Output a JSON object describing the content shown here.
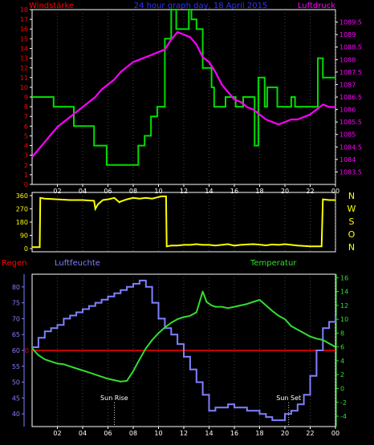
{
  "header": {
    "left_label": "Windstärke",
    "title": "24 hour graph day, 18 April 2015",
    "right_label": "Luftdruck"
  },
  "colors": {
    "wind_speed": "#00dd00",
    "pressure": "#ff00ff",
    "direction": "#ffff00",
    "humidity": "#8080ff",
    "temperature": "#33dd33",
    "rain": "#ff0000",
    "frame": "#ffffff",
    "grid": "#888888"
  },
  "chart_data": [
    {
      "type": "line",
      "name": "wind-pressure",
      "title": "",
      "y_left_label": "Windstärke",
      "y_right_label": "Luftdruck",
      "x_ticks": [
        "02",
        "04",
        "06",
        "08",
        "10",
        "12",
        "14",
        "16",
        "18",
        "20",
        "22",
        "00"
      ],
      "x_range": [
        0,
        24
      ],
      "y_left_range": [
        0,
        18
      ],
      "y_left_ticks": [
        0,
        1,
        2,
        3,
        4,
        5,
        6,
        7,
        8,
        9,
        10,
        11,
        12,
        13,
        14,
        15,
        16,
        17,
        18
      ],
      "y_right_range": [
        1083,
        1090
      ],
      "y_right_ticks": [
        1083.5,
        1084,
        1084.5,
        1085,
        1085.5,
        1086,
        1086.5,
        1087,
        1087.5,
        1088,
        1088.5,
        1089,
        1089.5
      ],
      "series": [
        {
          "name": "Windstärke",
          "axis": "left",
          "step": true,
          "x": [
            0,
            1.7,
            1.7,
            3.3,
            3.3,
            4.9,
            4.9,
            5.9,
            5.9,
            8.4,
            8.4,
            8.9,
            8.9,
            9.4,
            9.4,
            9.9,
            9.9,
            10.5,
            10.5,
            11.0,
            11.0,
            11.4,
            11.4,
            12.4,
            12.4,
            12.6,
            12.6,
            13.0,
            13.0,
            13.5,
            13.5,
            14.2,
            14.2,
            14.4,
            14.4,
            15.3,
            15.3,
            16.1,
            16.1,
            16.7,
            16.7,
            17.6,
            17.6,
            17.9,
            17.9,
            18.4,
            18.4,
            18.6,
            18.6,
            19.4,
            19.4,
            20.5,
            20.5,
            20.8,
            20.8,
            22.6,
            22.6,
            23.0,
            23.0,
            23.6,
            23.6,
            24
          ],
          "y": [
            9,
            9,
            8,
            8,
            6,
            6,
            4,
            4,
            2,
            2,
            4,
            4,
            5,
            5,
            7,
            7,
            8,
            8,
            15,
            15,
            18,
            18,
            16,
            16,
            18,
            18,
            17,
            17,
            16,
            16,
            12,
            12,
            10,
            10,
            8,
            8,
            9,
            9,
            8,
            8,
            9,
            9,
            4,
            4,
            11,
            11,
            8,
            8,
            10,
            10,
            8,
            8,
            9,
            9,
            8,
            8,
            13,
            13,
            11,
            11,
            11,
            11
          ]
        },
        {
          "name": "Luftdruck",
          "axis": "right",
          "x": [
            0,
            0.5,
            1,
            1.5,
            2,
            2.5,
            3,
            3.5,
            4,
            4.5,
            5,
            5.5,
            6,
            6.5,
            7,
            7.5,
            8,
            8.5,
            9,
            9.5,
            10,
            10.5,
            11,
            11.5,
            12,
            12.5,
            13,
            13.5,
            14,
            14.5,
            15,
            15.5,
            16,
            16.5,
            17,
            17.5,
            18,
            18.5,
            19,
            19.5,
            20,
            20.5,
            21,
            21.5,
            22,
            22.5,
            23,
            23.5,
            24
          ],
          "y": [
            1084.1,
            1084.4,
            1084.7,
            1085.0,
            1085.3,
            1085.5,
            1085.7,
            1085.9,
            1086.1,
            1086.3,
            1086.5,
            1086.8,
            1087.0,
            1087.2,
            1087.5,
            1087.7,
            1087.9,
            1088.0,
            1088.1,
            1088.2,
            1088.3,
            1088.4,
            1088.8,
            1089.1,
            1089.0,
            1088.9,
            1088.6,
            1088.1,
            1087.9,
            1087.5,
            1087.0,
            1086.7,
            1086.4,
            1086.3,
            1086.1,
            1086.0,
            1085.8,
            1085.6,
            1085.5,
            1085.4,
            1085.5,
            1085.6,
            1085.6,
            1085.7,
            1085.8,
            1086.0,
            1086.2,
            1086.1,
            1086.1
          ]
        }
      ]
    },
    {
      "type": "line",
      "name": "wind-direction",
      "title": "",
      "y_range": [
        0,
        360
      ],
      "y_ticks": [
        0,
        90,
        180,
        270,
        360
      ],
      "compass_labels": [
        "N",
        "W",
        "S",
        "O",
        "N"
      ],
      "x_range": [
        0,
        24
      ],
      "series": [
        {
          "name": "direction",
          "x": [
            0,
            0.6,
            0.65,
            1,
            2,
            3,
            4,
            4.9,
            5,
            5.2,
            5.6,
            6,
            6.5,
            6.9,
            7,
            7.5,
            8,
            8.5,
            9,
            9.5,
            10,
            10.2,
            10.6,
            10.65,
            11,
            11.5,
            12,
            12.5,
            13,
            13.5,
            14,
            14.5,
            15,
            15.5,
            16,
            16.5,
            17,
            17.5,
            18,
            18.5,
            19,
            19.5,
            20,
            20.5,
            21,
            21.5,
            22,
            22.5,
            22.9,
            23,
            23.5,
            24
          ],
          "y": [
            10,
            10,
            345,
            340,
            335,
            330,
            330,
            325,
            270,
            300,
            330,
            335,
            345,
            315,
            320,
            335,
            345,
            340,
            345,
            340,
            350,
            355,
            355,
            15,
            20,
            20,
            25,
            25,
            30,
            25,
            25,
            20,
            25,
            30,
            20,
            25,
            28,
            30,
            27,
            22,
            28,
            25,
            30,
            25,
            20,
            18,
            15,
            15,
            15,
            335,
            330,
            330
          ]
        }
      ]
    },
    {
      "type": "line",
      "name": "humidity-temperature",
      "title": "",
      "y_left_label": "Regen",
      "y_mid_label": "Luftfeuchte",
      "y_right_label": "Temperatur",
      "x_ticks": [
        "02",
        "04",
        "06",
        "08",
        "10",
        "12",
        "14",
        "16",
        "18",
        "20",
        "22",
        "00"
      ],
      "x_range": [
        0,
        24
      ],
      "y_left_range": [
        36,
        84
      ],
      "y_left_ticks": [
        40,
        45,
        50,
        55,
        60,
        65,
        70,
        75,
        80
      ],
      "rain_value": 0,
      "y_right_range": [
        -5.5,
        16.5
      ],
      "y_right_ticks": [
        -4,
        -2,
        0,
        2,
        4,
        6,
        8,
        10,
        12,
        14,
        16
      ],
      "annotations": [
        {
          "label": "Sun Rise",
          "x": 6.5
        },
        {
          "label": "Sun Set",
          "x": 20.3
        }
      ],
      "series": [
        {
          "name": "Luftfeuchte",
          "axis": "left",
          "step": true,
          "x": [
            0,
            0.5,
            1,
            1.5,
            2,
            2.5,
            3,
            3.5,
            4,
            4.5,
            5,
            5.5,
            6,
            6.5,
            7,
            7.5,
            8,
            8.5,
            9,
            9.5,
            10,
            10.5,
            11,
            11.5,
            12,
            12.5,
            13,
            13.5,
            14,
            14.5,
            15,
            15.5,
            16,
            16.5,
            17,
            17.5,
            18,
            18.5,
            19,
            19.5,
            20,
            20.5,
            21,
            21.5,
            22,
            22.5,
            23,
            23.5,
            24
          ],
          "y": [
            61,
            64,
            66,
            67,
            68,
            70,
            71,
            72,
            73,
            74,
            75,
            76,
            77,
            78,
            79,
            80,
            81,
            82,
            80,
            75,
            70,
            67,
            65,
            62,
            58,
            54,
            50,
            46,
            41,
            42,
            42,
            43,
            42,
            42,
            41,
            41,
            40,
            39,
            38,
            38,
            40,
            41,
            43,
            46,
            52,
            60,
            67,
            69,
            71
          ]
        },
        {
          "name": "Temperatur",
          "axis": "right",
          "x": [
            0,
            0.5,
            1,
            1.5,
            2,
            2.5,
            3,
            3.5,
            4,
            4.5,
            5,
            5.5,
            6,
            6.5,
            7,
            7.5,
            8,
            8.5,
            9,
            9.5,
            10,
            10.5,
            11,
            11.5,
            12,
            12.5,
            13,
            13.5,
            13.8,
            14.2,
            14.5,
            15,
            15.5,
            16,
            16.5,
            17,
            17.5,
            18,
            18.5,
            19,
            19.5,
            20,
            20.5,
            21,
            21.5,
            22,
            22.5,
            23,
            23.5,
            24
          ],
          "y": [
            5.8,
            4.8,
            4.2,
            3.9,
            3.6,
            3.5,
            3.2,
            2.9,
            2.6,
            2.3,
            2.0,
            1.7,
            1.4,
            1.2,
            1.0,
            1.1,
            2.5,
            4.2,
            5.8,
            7.0,
            8.0,
            8.8,
            9.5,
            10.0,
            10.3,
            10.5,
            11.0,
            14.0,
            12.5,
            12.0,
            11.8,
            11.8,
            11.6,
            11.8,
            12.0,
            12.2,
            12.5,
            12.8,
            12.0,
            11.2,
            10.5,
            10.0,
            9.0,
            8.5,
            8.0,
            7.5,
            7.2,
            7.0,
            6.5,
            6.0
          ]
        }
      ]
    }
  ]
}
